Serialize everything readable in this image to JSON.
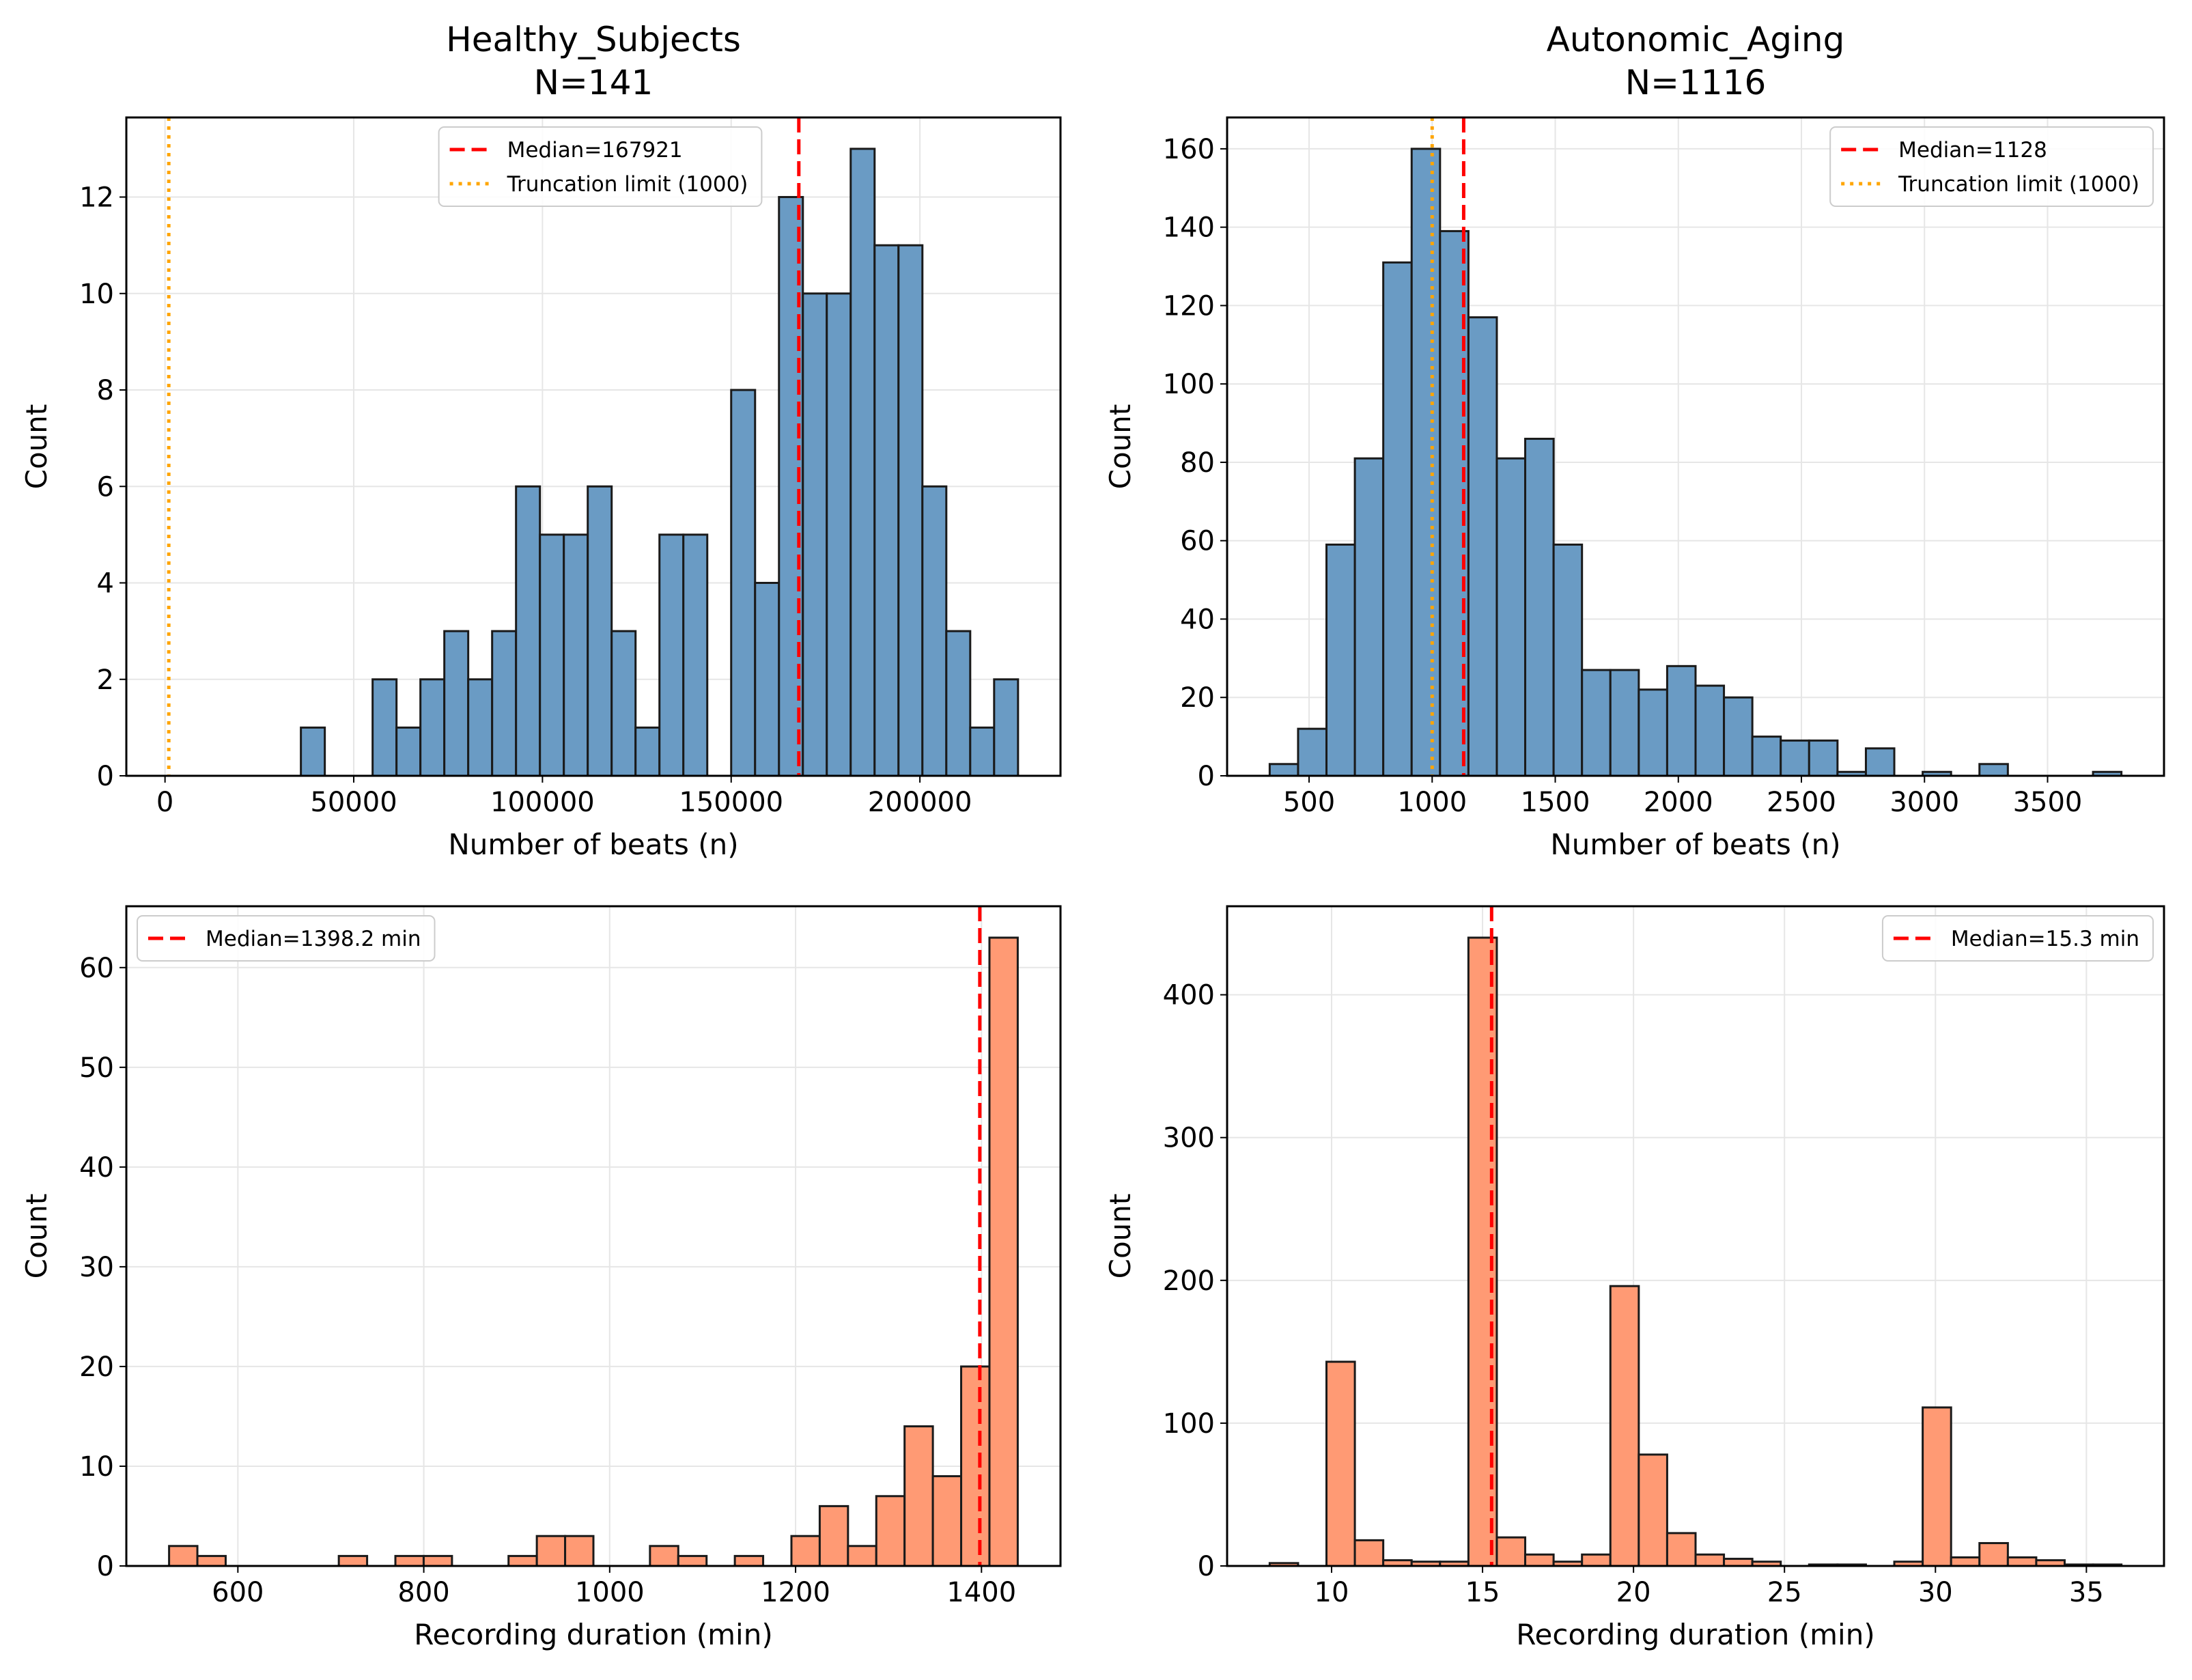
{
  "chart_data": [
    {
      "type": "bar",
      "title": "Healthy_Subjects",
      "subtitle": "N=141",
      "xlabel": "Number of beats (n)",
      "ylabel": "Count",
      "bin_start": 36000,
      "bin_end": 226000,
      "counts": [
        1,
        0,
        0,
        2,
        1,
        2,
        3,
        2,
        3,
        6,
        5,
        5,
        6,
        3,
        1,
        5,
        5,
        0,
        8,
        4,
        12,
        10,
        10,
        13,
        11,
        11,
        6,
        3,
        1,
        2
      ],
      "xlim": [
        -10250,
        237250
      ],
      "ylim": [
        0,
        13.65
      ],
      "xticks": [
        0,
        50000,
        100000,
        150000,
        200000
      ],
      "xtick_labels": [
        "0",
        "50000",
        "100000",
        "150000",
        "200000"
      ],
      "yticks": [
        0,
        2,
        4,
        6,
        8,
        10,
        12
      ],
      "ytick_labels": [
        "0",
        "2",
        "4",
        "6",
        "8",
        "10",
        "12"
      ],
      "median": 167921,
      "truncation": 1000,
      "legend_position": "upper-center",
      "legend": [
        "Median=167921",
        "Truncation limit (1000)"
      ],
      "bar_color": "#6a9bc4",
      "grid": true
    },
    {
      "type": "bar",
      "title": "Autonomic_Aging",
      "subtitle": "N=1116",
      "xlabel": "Number of beats (n)",
      "ylabel": "Count",
      "bin_start": 340,
      "bin_end": 3800,
      "counts": [
        3,
        12,
        59,
        81,
        131,
        160,
        139,
        117,
        81,
        86,
        59,
        27,
        27,
        22,
        28,
        23,
        20,
        10,
        9,
        9,
        1,
        7,
        0,
        1,
        0,
        3,
        0,
        0,
        0,
        1
      ],
      "xlim": [
        167,
        3973
      ],
      "ylim": [
        0,
        168
      ],
      "xticks": [
        500,
        1000,
        1500,
        2000,
        2500,
        3000,
        3500
      ],
      "xtick_labels": [
        "500",
        "1000",
        "1500",
        "2000",
        "2500",
        "3000",
        "3500"
      ],
      "yticks": [
        0,
        20,
        40,
        60,
        80,
        100,
        120,
        140,
        160
      ],
      "ytick_labels": [
        "0",
        "20",
        "40",
        "60",
        "80",
        "100",
        "120",
        "140",
        "160"
      ],
      "median": 1128,
      "truncation": 1000,
      "legend_position": "upper-right",
      "legend": [
        "Median=1128",
        "Truncation limit (1000)"
      ],
      "bar_color": "#6a9bc4",
      "grid": true
    },
    {
      "type": "bar",
      "title": "",
      "subtitle": "",
      "xlabel": "Recording duration (min)",
      "ylabel": "Count",
      "bin_start": 526,
      "bin_end": 1439,
      "counts": [
        2,
        1,
        0,
        0,
        0,
        0,
        1,
        0,
        1,
        1,
        0,
        0,
        1,
        3,
        3,
        0,
        0,
        2,
        1,
        0,
        1,
        0,
        3,
        6,
        2,
        7,
        14,
        9,
        20,
        63
      ],
      "xlim": [
        480,
        1485
      ],
      "ylim": [
        0,
        66.15
      ],
      "xticks": [
        600,
        800,
        1000,
        1200,
        1400
      ],
      "xtick_labels": [
        "600",
        "800",
        "1000",
        "1200",
        "1400"
      ],
      "yticks": [
        0,
        10,
        20,
        30,
        40,
        50,
        60
      ],
      "ytick_labels": [
        "0",
        "10",
        "20",
        "30",
        "40",
        "50",
        "60"
      ],
      "median": 1398.2,
      "truncation": null,
      "legend_position": "upper-left",
      "legend": [
        "Median=1398.2 min"
      ],
      "bar_color": "#ff9a74",
      "grid": true
    },
    {
      "type": "bar",
      "title": "",
      "subtitle": "",
      "xlabel": "Recording duration (min)",
      "ylabel": "Count",
      "bin_start": 7.95,
      "bin_end": 36.16,
      "counts": [
        2,
        0,
        143,
        18,
        4,
        3,
        3,
        440,
        20,
        8,
        3,
        8,
        196,
        78,
        23,
        8,
        5,
        3,
        0,
        1,
        1,
        0,
        3,
        111,
        6,
        16,
        6,
        4,
        1,
        1
      ],
      "xlim": [
        6.54,
        37.57
      ],
      "ylim": [
        0,
        462
      ],
      "xticks": [
        10,
        15,
        20,
        25,
        30,
        35
      ],
      "xtick_labels": [
        "10",
        "15",
        "20",
        "25",
        "30",
        "35"
      ],
      "yticks": [
        0,
        100,
        200,
        300,
        400
      ],
      "ytick_labels": [
        "0",
        "100",
        "200",
        "300",
        "400"
      ],
      "median": 15.3,
      "truncation": null,
      "legend_position": "upper-right",
      "legend": [
        "Median=15.3 min"
      ],
      "bar_color": "#ff9a74",
      "grid": true
    }
  ],
  "colors": {
    "median": "#ff0000",
    "truncation": "#ffa500",
    "edge": "#1a1a1a"
  }
}
